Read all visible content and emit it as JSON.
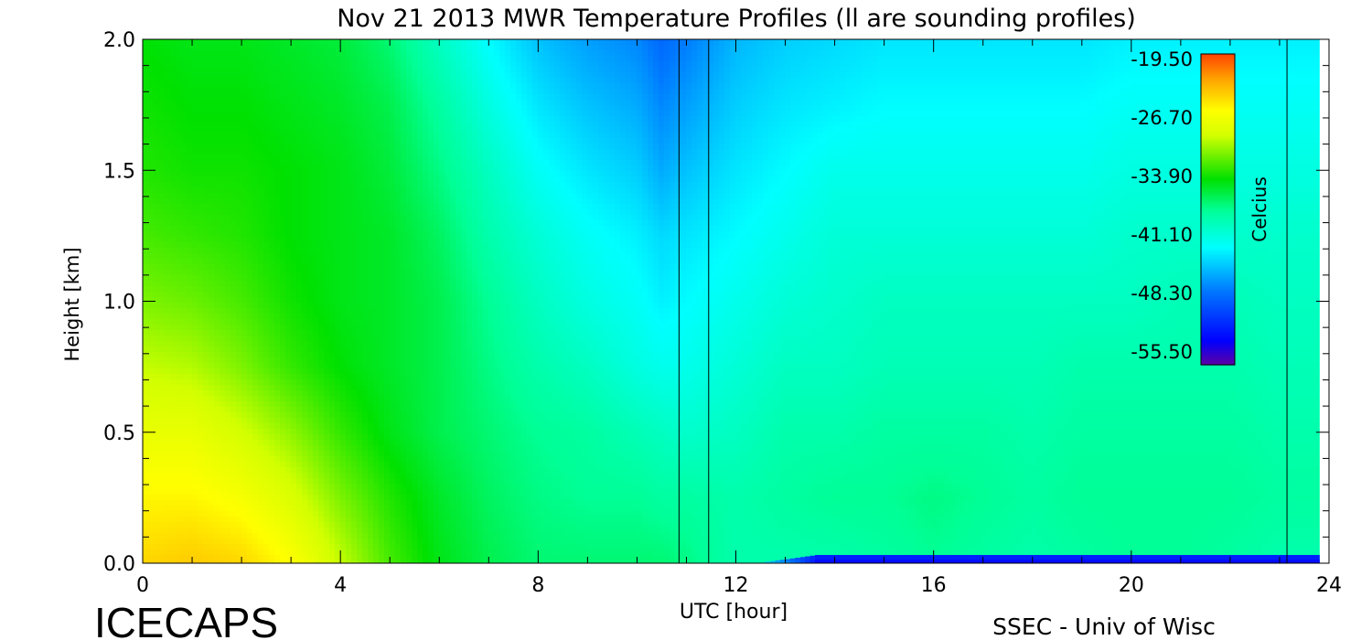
{
  "chart_data": {
    "type": "heatmap",
    "title": "Nov 21 2013 MWR Temperature Profiles (ll are sounding profiles)",
    "xlabel": "UTC [hour]",
    "ylabel": "Height [km]",
    "xlim": [
      0,
      24
    ],
    "ylim": [
      0,
      2
    ],
    "xticks": [
      0,
      4,
      8,
      12,
      16,
      20,
      24
    ],
    "xtick_labels": [
      "0",
      "4",
      "8",
      "12",
      "16",
      "20",
      "24"
    ],
    "yticks": [
      0.0,
      0.5,
      1.0,
      1.5,
      2.0
    ],
    "ytick_labels": [
      "0.0",
      "0.5",
      "1.0",
      "1.5",
      "2.0"
    ],
    "data_end_hour": 23.8,
    "sounding_hours": [
      10.85,
      11.45,
      23.15
    ],
    "colorbar": {
      "label": "Celcius",
      "min": -58,
      "max": -17,
      "ticks": [
        -19.5,
        -26.7,
        -33.9,
        -41.1,
        -48.3,
        -55.5
      ],
      "tick_labels": [
        "-19.50",
        "-26.70",
        "-33.90",
        "-41.10",
        "-48.30",
        "-55.50"
      ]
    },
    "temperature_field": {
      "units": "Celcius",
      "height_km": [
        0.0,
        0.25,
        0.5,
        0.75,
        1.0,
        1.25,
        1.5,
        1.75,
        2.0
      ],
      "hours": [
        0,
        1,
        2,
        3,
        4,
        5,
        6,
        7,
        8,
        9,
        10,
        10.5,
        11,
        12,
        13,
        14,
        15,
        16,
        17,
        18,
        19,
        20,
        21,
        22,
        23,
        23.8
      ],
      "rows": [
        [
          -22.5,
          -22.0,
          -22.5,
          -24.5,
          -28.0,
          -31.5,
          -34.0,
          -35.5,
          -36.5,
          -36.5,
          -36.5,
          -36.5,
          -37.0,
          -38.5,
          -38.5,
          -38.5,
          -38.0,
          -37.5,
          -38.0,
          -38.5,
          -38.0,
          -37.5,
          -37.5,
          -38.0,
          -38.5,
          -38.5
        ],
        [
          -24.0,
          -24.0,
          -25.0,
          -27.0,
          -30.0,
          -32.5,
          -34.5,
          -36.0,
          -37.0,
          -37.5,
          -37.5,
          -38.0,
          -38.0,
          -38.5,
          -38.0,
          -37.5,
          -37.5,
          -37.0,
          -37.5,
          -38.0,
          -37.5,
          -37.5,
          -37.5,
          -37.5,
          -38.0,
          -38.0
        ],
        [
          -26.0,
          -26.0,
          -27.5,
          -29.5,
          -32.0,
          -34.0,
          -35.5,
          -36.5,
          -37.5,
          -38.0,
          -39.0,
          -39.5,
          -40.0,
          -39.5,
          -38.5,
          -38.5,
          -38.0,
          -38.0,
          -38.0,
          -38.5,
          -38.0,
          -38.0,
          -38.0,
          -38.0,
          -38.5,
          -38.5
        ],
        [
          -28.0,
          -28.5,
          -30.0,
          -32.0,
          -33.5,
          -34.5,
          -35.5,
          -37.0,
          -38.5,
          -39.5,
          -41.0,
          -41.5,
          -41.5,
          -40.5,
          -39.5,
          -39.5,
          -39.0,
          -39.0,
          -39.0,
          -39.0,
          -38.5,
          -38.5,
          -38.5,
          -38.5,
          -39.0,
          -39.0
        ],
        [
          -30.0,
          -30.5,
          -31.5,
          -33.0,
          -34.0,
          -34.5,
          -35.5,
          -37.5,
          -39.5,
          -41.0,
          -42.0,
          -43.0,
          -42.5,
          -41.5,
          -40.5,
          -40.0,
          -39.5,
          -39.5,
          -39.5,
          -39.5,
          -39.5,
          -39.5,
          -39.0,
          -39.0,
          -39.5,
          -39.5
        ],
        [
          -31.5,
          -32.0,
          -32.5,
          -33.5,
          -34.0,
          -34.5,
          -36.0,
          -38.5,
          -40.5,
          -42.0,
          -43.0,
          -44.0,
          -43.5,
          -42.5,
          -41.5,
          -40.5,
          -40.5,
          -40.5,
          -40.5,
          -40.5,
          -40.5,
          -40.0,
          -40.0,
          -40.0,
          -40.0,
          -40.0
        ],
        [
          -32.5,
          -33.0,
          -33.0,
          -33.5,
          -34.0,
          -35.0,
          -37.0,
          -39.5,
          -42.0,
          -43.5,
          -44.5,
          -46.0,
          -45.0,
          -43.5,
          -42.5,
          -41.5,
          -41.5,
          -41.5,
          -41.5,
          -41.5,
          -41.5,
          -41.0,
          -41.0,
          -41.0,
          -41.0,
          -41.0
        ],
        [
          -33.0,
          -33.5,
          -33.5,
          -34.0,
          -34.5,
          -35.5,
          -38.0,
          -41.0,
          -43.5,
          -45.0,
          -46.0,
          -47.5,
          -46.5,
          -44.5,
          -43.5,
          -43.0,
          -42.5,
          -42.5,
          -42.5,
          -42.5,
          -42.5,
          -42.0,
          -42.0,
          -42.0,
          -42.0,
          -42.0
        ],
        [
          -33.5,
          -34.0,
          -34.0,
          -34.5,
          -35.0,
          -36.5,
          -39.5,
          -42.5,
          -45.0,
          -46.5,
          -47.5,
          -49.0,
          -48.0,
          -45.5,
          -44.5,
          -44.0,
          -43.5,
          -43.5,
          -43.5,
          -43.5,
          -43.5,
          -43.0,
          -43.0,
          -43.0,
          -43.0,
          -43.0
        ]
      ]
    }
  },
  "footer": {
    "left_logo": "ICECAPS",
    "right_credit": "SSEC - Univ of Wisc"
  }
}
